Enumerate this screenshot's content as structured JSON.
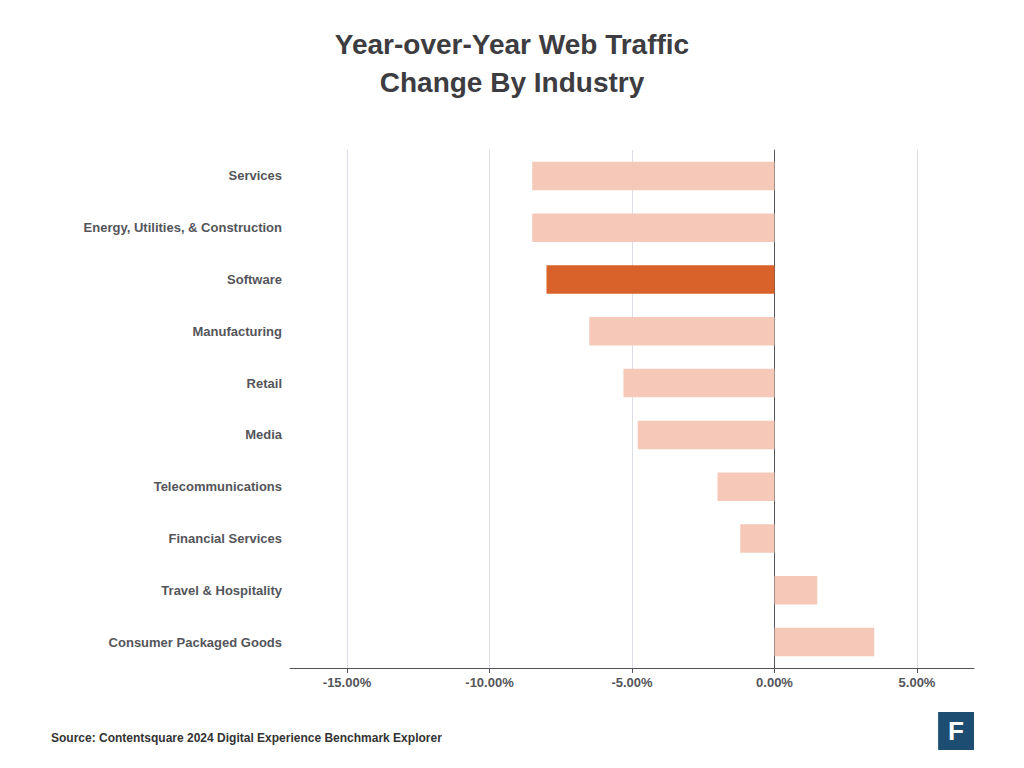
{
  "chart_data": {
    "type": "bar",
    "orientation": "horizontal",
    "title": "Year-over-Year Web Traffic\nChange By Industry",
    "categories": [
      "Consumer Packaged Goods",
      "Travel & Hospitality",
      "Financial Services",
      "Telecommunications",
      "Media",
      "Retail",
      "Manufacturing",
      "Software",
      "Energy, Utilities, & Construction",
      "Services"
    ],
    "values": [
      3.5,
      1.5,
      -1.2,
      -2.0,
      -4.8,
      -5.3,
      -6.5,
      -8.0,
      -8.5,
      -8.5
    ],
    "colors": [
      "#f5c8b8",
      "#f5c8b8",
      "#f5c8b8",
      "#f5c8b8",
      "#f5c8b8",
      "#f5c8b8",
      "#f5c8b8",
      "#d9622b",
      "#f5c8b8",
      "#f5c8b8"
    ],
    "xlim": [
      -17,
      7
    ],
    "xticks": [
      {
        "value": -15,
        "label": "-15.00%"
      },
      {
        "value": -10,
        "label": "-10.00%"
      },
      {
        "value": -5,
        "label": "-5.00%"
      },
      {
        "value": 0,
        "label": "0.00%"
      },
      {
        "value": 5,
        "label": "5.00%"
      }
    ],
    "grid": true,
    "annotations": [
      "Source: Contentsquare 2024 Digital Experience Benchmark Explorer",
      "F"
    ]
  }
}
